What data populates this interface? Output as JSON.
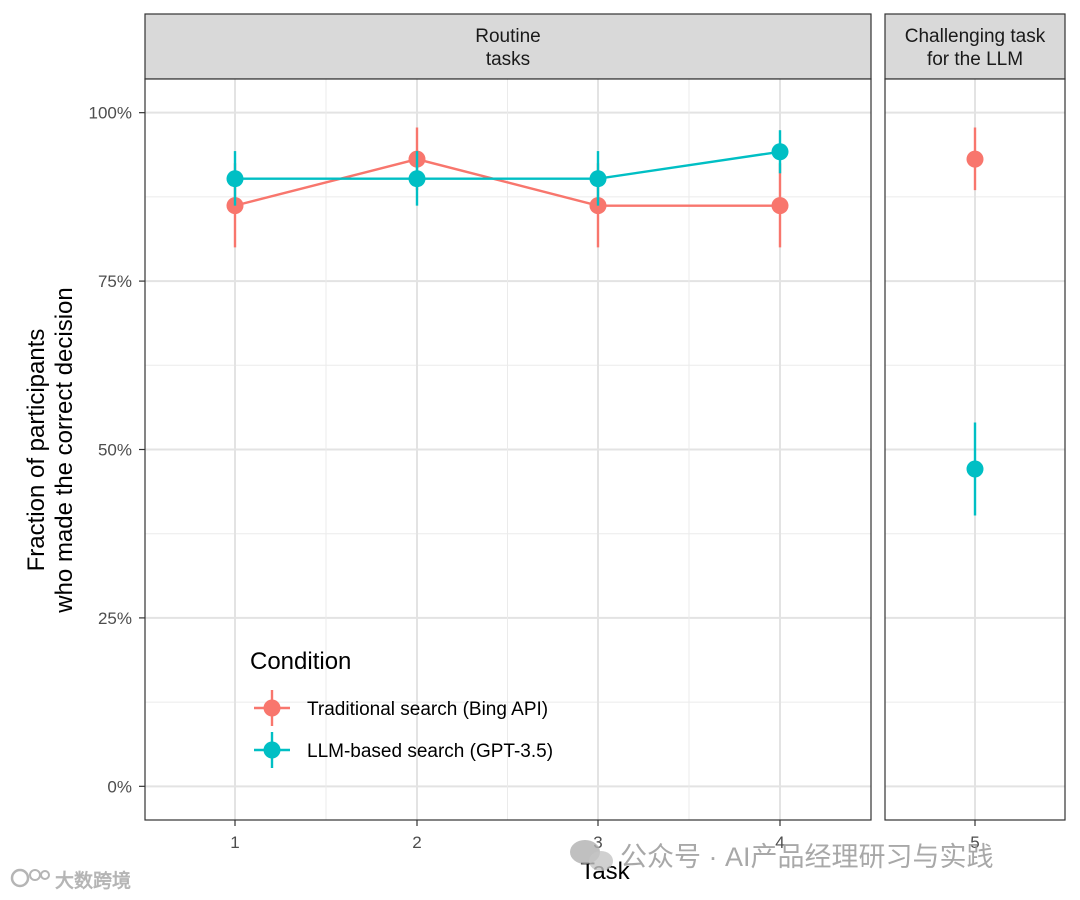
{
  "chart_data": {
    "type": "line",
    "facets": [
      {
        "id": "routine",
        "title_lines": [
          "Routine",
          "tasks"
        ],
        "categories": [
          "1",
          "2",
          "3",
          "4"
        ]
      },
      {
        "id": "challenging",
        "title_lines": [
          "Challenging task",
          "for the LLM"
        ],
        "categories": [
          "5"
        ]
      }
    ],
    "xlabel": "Task",
    "ylabel_lines": [
      "Fraction of participants",
      "who made the correct decision"
    ],
    "ylim": [
      -0.05,
      1.05
    ],
    "yticks": [
      0,
      0.25,
      0.5,
      0.75,
      1.0
    ],
    "ytick_labels": [
      "0%",
      "25%",
      "50%",
      "75%",
      "100%"
    ],
    "legend": {
      "title": "Condition",
      "position": "bottom-left inside"
    },
    "series": [
      {
        "name": "Traditional search (Bing API)",
        "color": "#F8766D",
        "points": [
          {
            "task": "1",
            "y": 0.862,
            "lo": 0.8,
            "hi": 0.925
          },
          {
            "task": "2",
            "y": 0.931,
            "lo": 0.885,
            "hi": 0.978
          },
          {
            "task": "3",
            "y": 0.862,
            "lo": 0.8,
            "hi": 0.925
          },
          {
            "task": "4",
            "y": 0.862,
            "lo": 0.8,
            "hi": 0.925
          },
          {
            "task": "5",
            "y": 0.931,
            "lo": 0.885,
            "hi": 0.978
          }
        ]
      },
      {
        "name": "LLM-based search (GPT-3.5)",
        "color": "#00BFC4",
        "points": [
          {
            "task": "1",
            "y": 0.902,
            "lo": 0.862,
            "hi": 0.943
          },
          {
            "task": "2",
            "y": 0.902,
            "lo": 0.862,
            "hi": 0.943
          },
          {
            "task": "3",
            "y": 0.902,
            "lo": 0.862,
            "hi": 0.943
          },
          {
            "task": "4",
            "y": 0.942,
            "lo": 0.91,
            "hi": 0.974
          },
          {
            "task": "5",
            "y": 0.471,
            "lo": 0.402,
            "hi": 0.54
          }
        ]
      }
    ]
  },
  "watermarks": {
    "wechat": "公众号 · AI产品经理研习与实践",
    "corner": "大数跨境"
  }
}
